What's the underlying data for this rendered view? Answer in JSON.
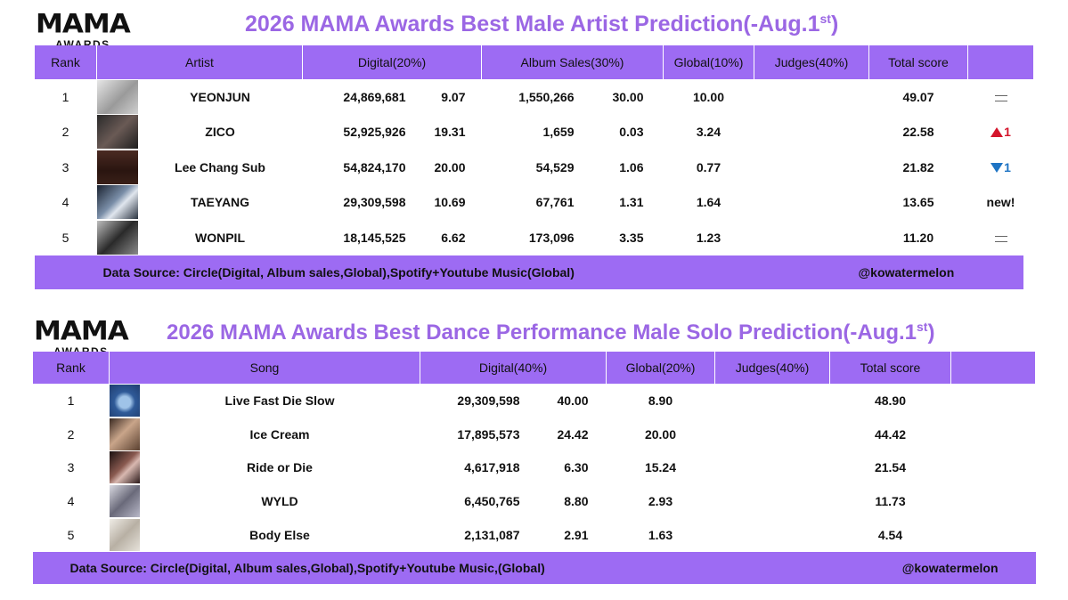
{
  "logo": {
    "line1": "MAMA",
    "line2": "AWARDS"
  },
  "table1": {
    "title": "2026 MAMA Awards Best Male Artist Prediction(-Aug.1",
    "title_sup": "st",
    "title_close": ")",
    "headers": [
      "Rank",
      "Artist",
      "Digital(20%)",
      "Album Sales(30%)",
      "Global(10%)",
      "Judges(40%)",
      "Total score",
      ""
    ],
    "rows": [
      {
        "rank": "1",
        "artist": "YEONJUN",
        "digital": "24,869,681",
        "digital_score": "9.07",
        "album": "1,550,266",
        "album_score": "30.00",
        "global": "10.00",
        "judges": "",
        "total": "49.07",
        "change": "",
        "change_type": "same"
      },
      {
        "rank": "2",
        "artist": "ZICO",
        "digital": "52,925,926",
        "digital_score": "19.31",
        "album": "1,659",
        "album_score": "0.03",
        "global": "3.24",
        "judges": "",
        "total": "22.58",
        "change": "1",
        "change_type": "up"
      },
      {
        "rank": "3",
        "artist": "Lee Chang Sub",
        "digital": "54,824,170",
        "digital_score": "20.00",
        "album": "54,529",
        "album_score": "1.06",
        "global": "0.77",
        "judges": "",
        "total": "21.82",
        "change": "1",
        "change_type": "down"
      },
      {
        "rank": "4",
        "artist": "TAEYANG",
        "digital": "29,309,598",
        "digital_score": "10.69",
        "album": "67,761",
        "album_score": "1.31",
        "global": "1.64",
        "judges": "",
        "total": "13.65",
        "change": "new!",
        "change_type": "new"
      },
      {
        "rank": "5",
        "artist": "WONPIL",
        "digital": "18,145,525",
        "digital_score": "6.62",
        "album": "173,096",
        "album_score": "3.35",
        "global": "1.23",
        "judges": "",
        "total": "11.20",
        "change": "",
        "change_type": "same"
      }
    ],
    "footer_source": "Data Source: Circle(Digital, Album sales,Global),Spotify+Youtube Music(Global)",
    "footer_credit": "@kowatermelon"
  },
  "table2": {
    "title": "2026 MAMA Awards Best Dance Performance Male Solo Prediction(-Aug.1",
    "title_sup": "st",
    "title_close": ")",
    "headers": [
      "Rank",
      "Song",
      "Digital(40%)",
      "Global(20%)",
      "Judges(40%)",
      "Total score",
      ""
    ],
    "rows": [
      {
        "rank": "1",
        "song": "Live Fast Die Slow",
        "digital": "29,309,598",
        "digital_score": "40.00",
        "global": "8.90",
        "judges": "",
        "total": "48.90"
      },
      {
        "rank": "2",
        "song": "Ice Cream",
        "digital": "17,895,573",
        "digital_score": "24.42",
        "global": "20.00",
        "judges": "",
        "total": "44.42"
      },
      {
        "rank": "3",
        "song": "Ride or Die",
        "digital": "4,617,918",
        "digital_score": "6.30",
        "global": "15.24",
        "judges": "",
        "total": "21.54"
      },
      {
        "rank": "4",
        "song": "WYLD",
        "digital": "6,450,765",
        "digital_score": "8.80",
        "global": "2.93",
        "judges": "",
        "total": "11.73"
      },
      {
        "rank": "5",
        "song": "Body Else",
        "digital": "2,131,087",
        "digital_score": "2.91",
        "global": "1.63",
        "judges": "",
        "total": "4.54"
      }
    ],
    "footer_source": "Data Source: Circle(Digital, Album sales,Global),Spotify+Youtube Music,(Global)",
    "footer_credit": "@kowatermelon"
  },
  "colors": {
    "header_bg": "#9d6bf3",
    "title": "#9b67e4",
    "up": "#d4152b",
    "down": "#1e74c4"
  },
  "icons": {
    "same": "equals-icon",
    "up": "triangle-up-icon",
    "down": "triangle-down-icon"
  }
}
